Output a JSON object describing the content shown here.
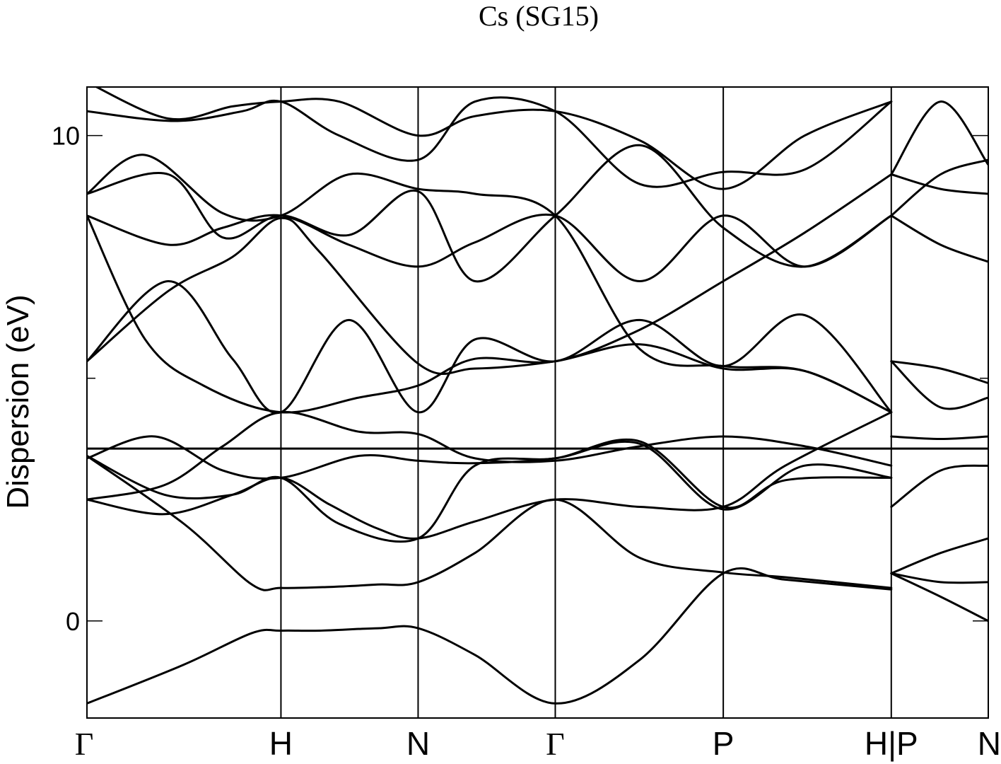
{
  "chart_data": {
    "type": "line",
    "title": "Cs (SG15)",
    "xlabel": "",
    "ylabel": "Dispersion (eV)",
    "ylim": [
      -2,
      11
    ],
    "yticks": [
      0,
      10
    ],
    "yminor_ticks": [
      5
    ],
    "grid": false,
    "legend": "none",
    "fermi_level": 3.55,
    "kpath": [
      {
        "label": "Γ",
        "x": 0.0
      },
      {
        "label": "H",
        "x": 1.0
      },
      {
        "label": "N",
        "x": 1.707
      },
      {
        "label": "Γ",
        "x": 2.414
      },
      {
        "label": "P",
        "x": 3.28
      },
      {
        "label": "H|P",
        "x": 4.146
      },
      {
        "label": "N",
        "x": 4.646
      }
    ],
    "series": [
      {
        "points": [
          [
            0,
            -1.7
          ],
          [
            0.5,
            -0.9
          ],
          [
            0.85,
            -0.25
          ],
          [
            1.0,
            -0.2
          ],
          [
            1.2,
            -0.2
          ],
          [
            1.5,
            -0.15
          ],
          [
            1.707,
            -0.15
          ],
          [
            2.0,
            -0.7
          ],
          [
            2.414,
            -1.7
          ],
          [
            2.85,
            -0.8
          ],
          [
            3.28,
            0.98
          ],
          [
            3.6,
            0.85
          ],
          [
            4.146,
            0.65
          ]
        ]
      },
      {
        "points": [
          [
            0,
            3.4
          ],
          [
            0.5,
            2.0
          ],
          [
            0.85,
            0.75
          ],
          [
            1.0,
            0.68
          ],
          [
            1.25,
            0.7
          ],
          [
            1.5,
            0.75
          ],
          [
            1.707,
            0.8
          ],
          [
            2.0,
            1.4
          ],
          [
            2.414,
            2.5
          ],
          [
            2.85,
            1.3
          ],
          [
            3.28,
            1.0
          ],
          [
            3.6,
            0.9
          ],
          [
            4.146,
            0.68
          ]
        ]
      },
      {
        "points": [
          [
            0,
            2.5
          ],
          [
            0.4,
            2.2
          ],
          [
            0.75,
            2.6
          ],
          [
            1.0,
            2.95
          ],
          [
            1.25,
            2.4
          ],
          [
            1.5,
            1.9
          ],
          [
            1.707,
            1.7
          ],
          [
            2.0,
            2.05
          ],
          [
            2.414,
            2.5
          ],
          [
            2.85,
            2.35
          ],
          [
            3.28,
            2.35
          ],
          [
            3.6,
            3.2
          ],
          [
            4.146,
            4.3
          ]
        ]
      },
      {
        "points": [
          [
            0,
            3.4
          ],
          [
            0.4,
            2.6
          ],
          [
            0.75,
            2.6
          ],
          [
            1.0,
            2.95
          ],
          [
            1.3,
            2.0
          ],
          [
            1.707,
            1.7
          ],
          [
            2.0,
            3.2
          ],
          [
            2.414,
            3.35
          ],
          [
            2.85,
            3.7
          ],
          [
            3.28,
            2.35
          ],
          [
            3.6,
            2.9
          ],
          [
            4.146,
            2.95
          ]
        ]
      },
      {
        "points": [
          [
            0,
            2.5
          ],
          [
            0.4,
            2.8
          ],
          [
            0.7,
            3.6
          ],
          [
            1.0,
            4.3
          ],
          [
            1.4,
            3.9
          ],
          [
            1.707,
            3.85
          ],
          [
            2.0,
            3.35
          ],
          [
            2.414,
            3.3
          ],
          [
            2.85,
            3.6
          ],
          [
            3.28,
            3.8
          ],
          [
            3.7,
            3.6
          ],
          [
            4.146,
            3.2
          ]
        ]
      },
      {
        "points": [
          [
            0,
            3.35
          ],
          [
            0.35,
            3.8
          ],
          [
            0.7,
            3.1
          ],
          [
            1.0,
            2.95
          ],
          [
            1.4,
            3.4
          ],
          [
            1.707,
            3.3
          ],
          [
            2.0,
            3.25
          ],
          [
            2.414,
            3.35
          ],
          [
            2.85,
            3.65
          ],
          [
            3.28,
            2.3
          ],
          [
            3.7,
            3.2
          ],
          [
            4.146,
            2.95
          ]
        ]
      },
      {
        "points": [
          [
            0,
            5.35
          ],
          [
            0.42,
            7.0
          ],
          [
            0.75,
            5.4
          ],
          [
            1.0,
            4.3
          ],
          [
            1.35,
            6.2
          ],
          [
            1.707,
            4.3
          ],
          [
            2.0,
            5.8
          ],
          [
            2.414,
            5.35
          ],
          [
            2.85,
            6.2
          ],
          [
            3.28,
            5.25
          ],
          [
            3.7,
            6.3
          ],
          [
            4.146,
            4.3
          ]
        ]
      },
      {
        "points": [
          [
            0,
            5.35
          ],
          [
            0.42,
            6.8
          ],
          [
            0.75,
            7.5
          ],
          [
            1.0,
            8.3
          ],
          [
            1.2,
            7.6
          ],
          [
            1.707,
            5.3
          ],
          [
            2.0,
            5.2
          ],
          [
            2.414,
            5.35
          ],
          [
            2.85,
            5.7
          ],
          [
            3.28,
            5.2
          ],
          [
            3.7,
            5.15
          ],
          [
            4.146,
            4.3
          ]
        ]
      },
      {
        "points": [
          [
            0,
            8.35
          ],
          [
            0.3,
            5.8
          ],
          [
            0.6,
            4.85
          ],
          [
            1.0,
            4.3
          ],
          [
            1.4,
            4.6
          ],
          [
            1.707,
            4.85
          ],
          [
            2.0,
            5.4
          ],
          [
            2.414,
            5.35
          ],
          [
            2.85,
            6.0
          ],
          [
            3.28,
            7.0
          ],
          [
            3.7,
            8.0
          ],
          [
            4.146,
            9.2
          ]
        ]
      },
      {
        "points": [
          [
            0,
            8.35
          ],
          [
            0.42,
            7.75
          ],
          [
            0.7,
            8.1
          ],
          [
            1.0,
            8.35
          ],
          [
            1.35,
            7.75
          ],
          [
            1.707,
            7.3
          ],
          [
            2.0,
            7.8
          ],
          [
            2.414,
            8.35
          ],
          [
            2.85,
            7.0
          ],
          [
            3.28,
            8.35
          ],
          [
            3.7,
            7.3
          ],
          [
            4.146,
            8.35
          ]
        ]
      },
      {
        "points": [
          [
            0,
            8.8
          ],
          [
            0.3,
            9.6
          ],
          [
            0.7,
            8.4
          ],
          [
            1.0,
            8.35
          ],
          [
            1.35,
            9.2
          ],
          [
            1.707,
            8.9
          ],
          [
            2.0,
            8.8
          ],
          [
            2.414,
            8.35
          ],
          [
            2.85,
            5.6
          ],
          [
            3.28,
            5.25
          ],
          [
            3.7,
            5.15
          ],
          [
            4.146,
            4.3
          ]
        ]
      },
      {
        "points": [
          [
            0,
            8.8
          ],
          [
            0.42,
            9.2
          ],
          [
            0.7,
            7.9
          ],
          [
            1.0,
            8.35
          ],
          [
            1.35,
            7.95
          ],
          [
            1.707,
            8.85
          ],
          [
            2.0,
            7.0
          ],
          [
            2.414,
            8.35
          ],
          [
            2.85,
            9.8
          ],
          [
            3.28,
            8.1
          ],
          [
            3.7,
            7.3
          ],
          [
            4.146,
            8.35
          ]
        ]
      },
      {
        "points": [
          [
            0,
            10.5
          ],
          [
            0.45,
            10.3
          ],
          [
            0.8,
            10.5
          ],
          [
            1.0,
            10.7
          ],
          [
            1.3,
            10.0
          ],
          [
            1.707,
            9.5
          ],
          [
            2.0,
            10.7
          ],
          [
            2.414,
            10.5
          ],
          [
            2.85,
            9.0
          ],
          [
            3.28,
            9.25
          ],
          [
            3.7,
            9.3
          ],
          [
            4.146,
            10.7
          ]
        ]
      },
      {
        "points": [
          [
            0,
            11.1
          ],
          [
            0.42,
            10.35
          ],
          [
            0.75,
            10.6
          ],
          [
            1.0,
            10.7
          ],
          [
            1.3,
            10.7
          ],
          [
            1.707,
            10.0
          ],
          [
            2.0,
            10.4
          ],
          [
            2.414,
            10.5
          ],
          [
            2.85,
            9.9
          ],
          [
            3.28,
            8.9
          ],
          [
            3.7,
            10.0
          ],
          [
            4.146,
            10.7
          ]
        ]
      },
      {
        "points": [
          [
            4.146,
            3.8
          ],
          [
            4.4,
            3.75
          ],
          [
            4.646,
            3.8
          ]
        ]
      },
      {
        "points": [
          [
            4.146,
            5.35
          ],
          [
            4.4,
            5.2
          ],
          [
            4.646,
            4.9
          ]
        ]
      },
      {
        "points": [
          [
            4.146,
            5.35
          ],
          [
            4.4,
            4.4
          ],
          [
            4.646,
            4.6
          ]
        ]
      },
      {
        "points": [
          [
            4.146,
            2.35
          ],
          [
            4.4,
            3.1
          ],
          [
            4.646,
            3.2
          ]
        ]
      },
      {
        "points": [
          [
            4.146,
            0.98
          ],
          [
            4.4,
            1.4
          ],
          [
            4.646,
            1.7
          ]
        ]
      },
      {
        "points": [
          [
            4.146,
            0.98
          ],
          [
            4.4,
            0.8
          ],
          [
            4.646,
            0.8
          ]
        ]
      },
      {
        "points": [
          [
            4.146,
            0.98
          ],
          [
            4.4,
            0.5
          ],
          [
            4.646,
            0.0
          ]
        ]
      },
      {
        "points": [
          [
            4.146,
            8.35
          ],
          [
            4.4,
            9.2
          ],
          [
            4.646,
            9.5
          ]
        ]
      },
      {
        "points": [
          [
            4.146,
            8.35
          ],
          [
            4.4,
            7.75
          ],
          [
            4.646,
            7.4
          ]
        ]
      },
      {
        "points": [
          [
            4.146,
            9.2
          ],
          [
            4.4,
            10.7
          ],
          [
            4.646,
            9.4
          ]
        ]
      },
      {
        "points": [
          [
            4.146,
            9.2
          ],
          [
            4.4,
            8.9
          ],
          [
            4.646,
            8.8
          ]
        ]
      }
    ]
  }
}
